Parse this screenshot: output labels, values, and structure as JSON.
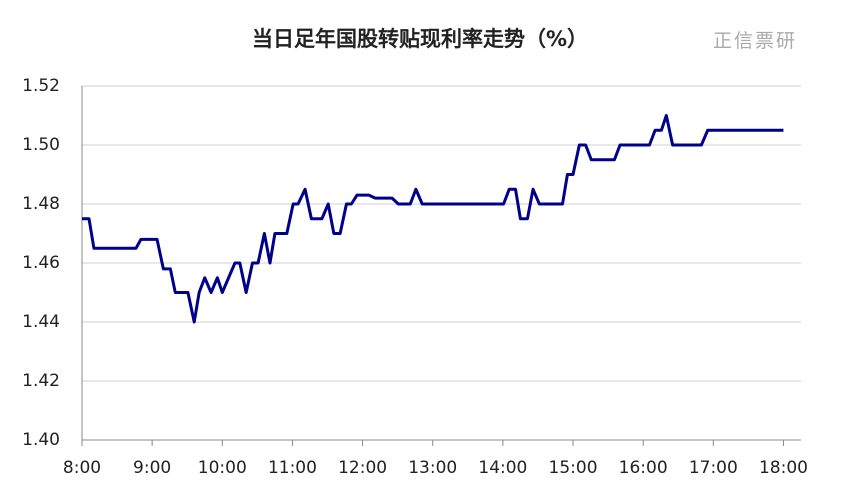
{
  "chart_data": {
    "type": "line",
    "title": "当日足年国股转贴现利率走势（%）",
    "watermark": "正信票研",
    "x": [
      8.0,
      8.1,
      8.17,
      8.77,
      8.84,
      9.07,
      9.16,
      9.26,
      9.33,
      9.51,
      9.6,
      9.67,
      9.75,
      9.84,
      9.93,
      10.0,
      10.18,
      10.25,
      10.34,
      10.43,
      10.51,
      10.6,
      10.68,
      10.75,
      10.92,
      11.01,
      11.08,
      11.18,
      11.27,
      11.42,
      11.51,
      11.59,
      11.68,
      11.77,
      11.84,
      11.92,
      12.09,
      12.18,
      12.42,
      12.51,
      12.68,
      12.76,
      12.85,
      14.01,
      14.09,
      14.18,
      14.25,
      14.35,
      14.43,
      14.52,
      14.85,
      14.92,
      15.0,
      15.09,
      15.18,
      15.26,
      15.59,
      15.67,
      16.09,
      16.17,
      16.26,
      16.33,
      16.42,
      16.83,
      16.92,
      18.0
    ],
    "series": [
      {
        "color": "#00008b",
        "values": [
          1.475,
          1.475,
          1.465,
          1.465,
          1.468,
          1.468,
          1.458,
          1.458,
          1.45,
          1.45,
          1.44,
          1.45,
          1.455,
          1.45,
          1.455,
          1.45,
          1.46,
          1.46,
          1.45,
          1.46,
          1.46,
          1.47,
          1.46,
          1.47,
          1.47,
          1.48,
          1.48,
          1.485,
          1.475,
          1.475,
          1.48,
          1.47,
          1.47,
          1.48,
          1.48,
          1.483,
          1.483,
          1.482,
          1.482,
          1.48,
          1.48,
          1.485,
          1.48,
          1.48,
          1.485,
          1.485,
          1.475,
          1.475,
          1.485,
          1.48,
          1.48,
          1.49,
          1.49,
          1.5,
          1.5,
          1.495,
          1.495,
          1.5,
          1.5,
          1.505,
          1.505,
          1.51,
          1.5,
          1.5,
          1.505,
          1.505
        ]
      }
    ],
    "xlim": [
      8,
      18.25
    ],
    "xticks": [
      {
        "value": 8,
        "label": "8:00"
      },
      {
        "value": 9,
        "label": "9:00"
      },
      {
        "value": 10,
        "label": "10:00"
      },
      {
        "value": 11,
        "label": "11:00"
      },
      {
        "value": 12,
        "label": "12:00"
      },
      {
        "value": 13,
        "label": "13:00"
      },
      {
        "value": 14,
        "label": "14:00"
      },
      {
        "value": 15,
        "label": "15:00"
      },
      {
        "value": 16,
        "label": "16:00"
      },
      {
        "value": 17,
        "label": "17:00"
      },
      {
        "value": 18,
        "label": "18:00"
      }
    ],
    "ylim": [
      1.4,
      1.52
    ],
    "yticks": [
      {
        "value": 1.4,
        "label": "1.40"
      },
      1.42,
      1.44,
      1.46,
      1.48,
      {
        "value": 1.5,
        "label": "1.50"
      },
      1.52
    ],
    "grid": true
  }
}
